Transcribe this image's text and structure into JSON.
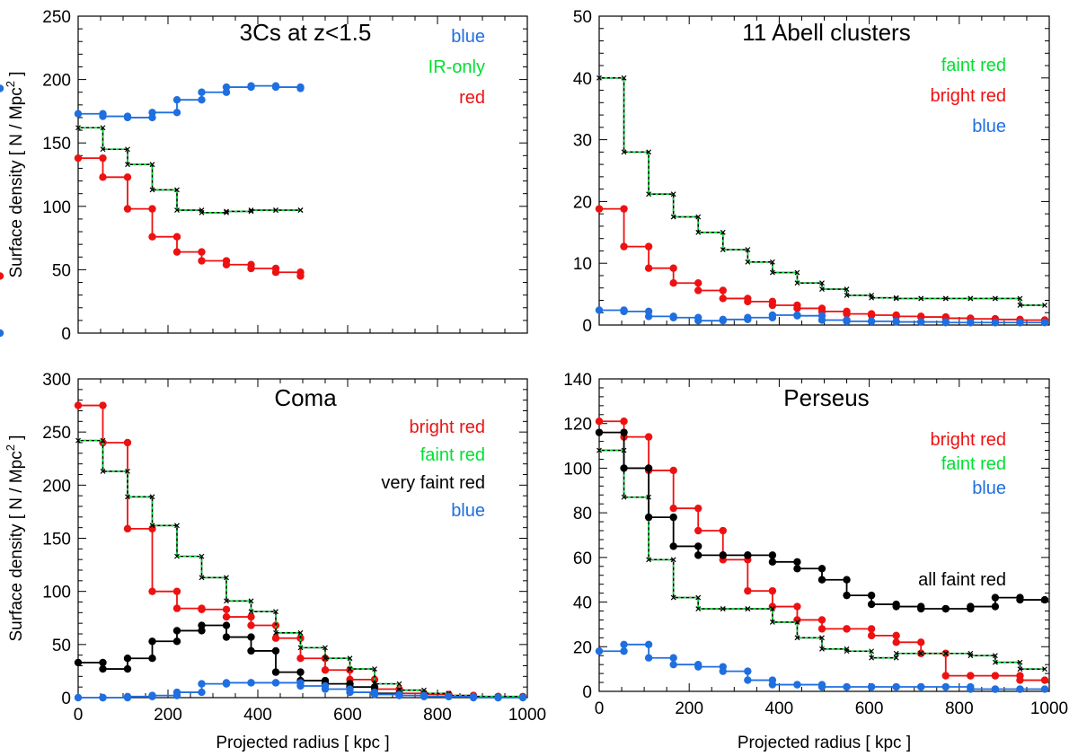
{
  "figure": {
    "x_label": "Projected radius   [ kpc ]",
    "y_label_prefix": "Surface density  [ N / Mpc",
    "y_label_sup": "2",
    "y_label_suffix": " ]"
  },
  "colors": {
    "blue": "#1f6fe0",
    "green": "#00e030",
    "red": "#ee1111",
    "black": "#000000"
  },
  "chart_data": [
    {
      "type": "line",
      "title": "3Cs at z<1.5",
      "xlim": [
        0,
        1000
      ],
      "ylim": [
        0,
        250
      ],
      "yticks": [
        0,
        50,
        100,
        150,
        200,
        250
      ],
      "ylabel_shown": true,
      "xlabel_shown": false,
      "legend": [
        {
          "text": "blue",
          "color": "blue"
        },
        {
          "text": "IR-only",
          "color": "green"
        },
        {
          "text": "red",
          "color": "red"
        }
      ],
      "series": [
        {
          "name": "blue",
          "color": "blue",
          "style": "step-dots",
          "drop_to_zero": true,
          "edges": [
            0,
            55,
            110,
            165,
            220,
            275,
            330,
            385,
            440,
            495
          ],
          "values": [
            173,
            171,
            170,
            174,
            184,
            190,
            194,
            195,
            194,
            193
          ]
        },
        {
          "name": "IR-only",
          "color": "green",
          "style": "step-dash",
          "edges": [
            0,
            55,
            110,
            165,
            220,
            275,
            330,
            385,
            440,
            495
          ],
          "values": [
            162,
            145,
            133,
            113,
            97,
            95,
            96,
            97,
            97,
            97
          ]
        },
        {
          "name": "red",
          "color": "red",
          "style": "step-dots",
          "edges": [
            0,
            55,
            110,
            165,
            220,
            275,
            330,
            385,
            440,
            495
          ],
          "values": [
            138,
            123,
            98,
            76,
            64,
            57,
            54,
            51,
            48,
            45
          ]
        }
      ]
    },
    {
      "type": "line",
      "title": "11 Abell clusters",
      "xlim": [
        0,
        1000
      ],
      "ylim": [
        0,
        50
      ],
      "yticks": [
        0,
        10,
        20,
        30,
        40,
        50
      ],
      "ylabel_shown": false,
      "xlabel_shown": false,
      "legend": [
        {
          "text": "faint red",
          "color": "green"
        },
        {
          "text": "bright red",
          "color": "red"
        },
        {
          "text": "blue",
          "color": "blue"
        }
      ],
      "series": [
        {
          "name": "faint red",
          "color": "green",
          "style": "step-dash",
          "edges": [
            0,
            55,
            110,
            165,
            220,
            275,
            330,
            385,
            440,
            495,
            550,
            605,
            660,
            715,
            770,
            825,
            880,
            935,
            990
          ],
          "values": [
            40,
            28,
            21.2,
            17.5,
            15,
            12.2,
            10.2,
            8.5,
            6.8,
            5.8,
            4.8,
            4.4,
            4.3,
            4.3,
            4.3,
            4.3,
            4.3,
            3.2
          ]
        },
        {
          "name": "bright red",
          "color": "red",
          "style": "step-dots",
          "edges": [
            0,
            55,
            110,
            165,
            220,
            275,
            330,
            385,
            440,
            495,
            550,
            605,
            660,
            715,
            770,
            825,
            880,
            935,
            990
          ],
          "values": [
            18.8,
            12.7,
            9.2,
            6.8,
            5.6,
            4.3,
            3.8,
            3.2,
            2.7,
            2.2,
            1.8,
            1.6,
            1.4,
            1.3,
            1.1,
            1,
            0.9,
            0.8
          ]
        },
        {
          "name": "blue",
          "color": "blue",
          "style": "step-dots",
          "edges": [
            0,
            55,
            110,
            165,
            220,
            275,
            330,
            385,
            440,
            495,
            550,
            605,
            660,
            715,
            770,
            825,
            880,
            935,
            990
          ],
          "values": [
            2.4,
            2.2,
            1.4,
            1.2,
            0.7,
            0.9,
            1.2,
            1.6,
            1.5,
            0.8,
            0.6,
            0.6,
            0.5,
            0.5,
            0.4,
            0.4,
            0.4,
            0.4
          ]
        }
      ]
    },
    {
      "type": "line",
      "title": "Coma",
      "xlim": [
        0,
        1000
      ],
      "ylim": [
        0,
        300
      ],
      "yticks": [
        0,
        50,
        100,
        150,
        200,
        250,
        300
      ],
      "xticks": [
        0,
        200,
        400,
        600,
        800,
        1000
      ],
      "ylabel_shown": true,
      "xlabel_shown": true,
      "legend": [
        {
          "text": "bright red",
          "color": "red"
        },
        {
          "text": "faint red",
          "color": "green"
        },
        {
          "text": "very faint red",
          "color": "black"
        },
        {
          "text": "blue",
          "color": "blue"
        }
      ],
      "series": [
        {
          "name": "bright red",
          "color": "red",
          "style": "step-dots",
          "edges": [
            0,
            55,
            110,
            165,
            220,
            275,
            330,
            385,
            440,
            495,
            550,
            605,
            660,
            715,
            770,
            825,
            880,
            935,
            990
          ],
          "values": [
            275,
            240,
            159,
            100,
            84,
            83,
            76,
            68,
            56,
            37,
            26,
            17,
            8,
            4,
            3,
            2,
            1,
            1
          ]
        },
        {
          "name": "faint red",
          "color": "green",
          "style": "step-dash",
          "edges": [
            0,
            55,
            110,
            165,
            220,
            275,
            330,
            385,
            440,
            495,
            550,
            605,
            660,
            715,
            770,
            825,
            880,
            935,
            990
          ],
          "values": [
            242,
            213,
            189,
            162,
            133,
            113,
            91,
            81,
            61,
            47,
            37,
            27,
            13,
            7,
            4,
            2,
            1,
            1
          ]
        },
        {
          "name": "very faint red",
          "color": "black",
          "style": "step-dots",
          "edges": [
            0,
            55,
            110,
            165,
            220,
            275,
            330,
            385,
            440,
            495,
            550,
            605,
            660,
            715
          ],
          "values": [
            33,
            27,
            37,
            53,
            63,
            68,
            57,
            44,
            24,
            16,
            13,
            10,
            4
          ]
        },
        {
          "name": "blue",
          "color": "blue",
          "style": "step-dots",
          "edges": [
            0,
            55,
            110,
            165,
            220,
            275,
            330,
            385,
            440,
            495,
            550,
            605,
            660,
            715,
            770,
            825,
            880,
            935,
            990
          ],
          "values": [
            0,
            0,
            1,
            2,
            5,
            13,
            14,
            14,
            14,
            11,
            8,
            5,
            3,
            2,
            1,
            1,
            0,
            0
          ]
        }
      ]
    },
    {
      "type": "line",
      "title": "Perseus",
      "xlim": [
        0,
        1000
      ],
      "ylim": [
        0,
        140
      ],
      "yticks": [
        0,
        20,
        40,
        60,
        80,
        100,
        120,
        140
      ],
      "xticks": [
        0,
        200,
        400,
        600,
        800,
        1000
      ],
      "ylabel_shown": false,
      "xlabel_shown": true,
      "legend": [
        {
          "text": "bright red",
          "color": "red"
        },
        {
          "text": "faint red",
          "color": "green"
        },
        {
          "text": "blue",
          "color": "blue"
        }
      ],
      "extra_label": {
        "text": "all faint red",
        "color": "black"
      },
      "series": [
        {
          "name": "bright red",
          "color": "red",
          "style": "step-dots",
          "edges": [
            0,
            55,
            110,
            165,
            220,
            275,
            330,
            385,
            440,
            495,
            550,
            605,
            660,
            715,
            770,
            825,
            880,
            935,
            990
          ],
          "values": [
            121,
            114,
            99,
            82,
            72,
            59,
            45,
            38,
            32,
            28,
            28,
            25,
            22,
            17,
            7,
            7,
            7,
            5
          ]
        },
        {
          "name": "faint red",
          "color": "green",
          "style": "step-dash",
          "edges": [
            0,
            55,
            110,
            165,
            220,
            275,
            330,
            385,
            440,
            495,
            550,
            605,
            660,
            715,
            770,
            825,
            880,
            935,
            990
          ],
          "values": [
            108,
            87,
            59,
            42,
            37,
            37,
            37,
            31,
            24,
            19,
            18,
            15,
            17,
            17,
            17,
            16,
            13,
            10
          ]
        },
        {
          "name": "all faint red",
          "color": "black",
          "style": "step-dots",
          "edges": [
            0,
            55,
            110,
            165,
            220,
            275,
            330,
            385,
            440,
            495,
            550,
            605,
            660,
            715,
            770,
            825,
            880,
            935,
            990
          ],
          "values": [
            116,
            100,
            78,
            65,
            61,
            61,
            61,
            58,
            55,
            50,
            43,
            39,
            38,
            37,
            37,
            38,
            42,
            41
          ]
        },
        {
          "name": "blue",
          "color": "blue",
          "style": "step-dots",
          "edges": [
            0,
            55,
            110,
            165,
            220,
            275,
            330,
            385,
            440,
            495,
            550,
            605,
            660,
            715,
            770,
            825,
            880,
            935,
            990
          ],
          "values": [
            18,
            21,
            15,
            12,
            11,
            9,
            5,
            3,
            3,
            2,
            2,
            2,
            2,
            2,
            2,
            1,
            1,
            1
          ]
        }
      ]
    }
  ]
}
